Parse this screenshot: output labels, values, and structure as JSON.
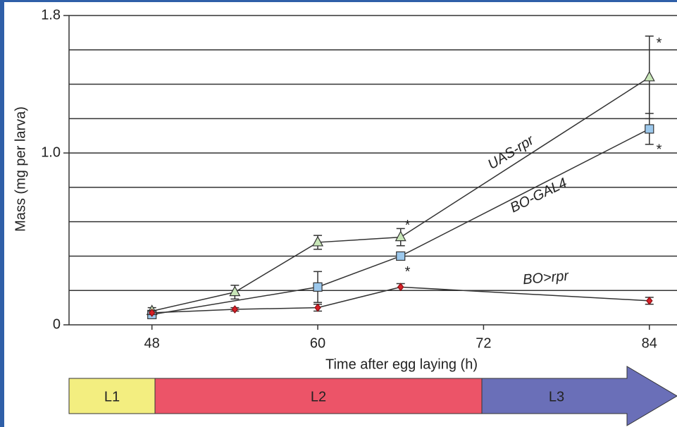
{
  "chart_data": {
    "type": "line",
    "y_label": "Mass (mg per larva)",
    "x_label": "Time after egg laying (h)",
    "xlim": [
      42,
      86
    ],
    "xticks": [
      48,
      60,
      72,
      84
    ],
    "ylim": [
      0,
      1.8
    ],
    "yticks": [
      0,
      {
        "value": 1,
        "label": "1.0"
      },
      1.8
    ],
    "ygrid": [
      0.2,
      0.4,
      0.6,
      0.8,
      1,
      1.2,
      1.4,
      1.6,
      1.8
    ],
    "series": [
      {
        "name": "UAS-rpr",
        "color": "#c8e6b8",
        "marker": "triangle",
        "x": [
          48,
          54,
          60,
          66,
          84
        ],
        "values": [
          0.08,
          0.19,
          0.48,
          0.51,
          1.44
        ],
        "errors": [
          0.02,
          0.04,
          0.04,
          0.05,
          0.24
        ]
      },
      {
        "name": "BO-GAL4",
        "color": "#9cc8ec",
        "marker": "square",
        "x": [
          48,
          60,
          66,
          84
        ],
        "values": [
          0.06,
          0.22,
          0.4,
          1.14
        ],
        "errors": [
          0.01,
          0.09,
          0.01,
          0.09
        ]
      },
      {
        "name": "BO>rpr",
        "color": "#d81f26",
        "marker": "diamond",
        "x": [
          48,
          54,
          60,
          66,
          84
        ],
        "values": [
          0.07,
          0.09,
          0.1,
          0.22,
          0.14
        ],
        "errors": [
          0.01,
          0.01,
          0.02,
          0.02,
          0.02
        ]
      }
    ],
    "annotations": [
      {
        "text": "*",
        "x": 66.5,
        "y": 0.6
      },
      {
        "text": "*",
        "x": 66.5,
        "y": 0.33
      },
      {
        "text": "*",
        "x": 84.7,
        "y": 1.66
      },
      {
        "text": "*",
        "x": 84.7,
        "y": 1.04
      }
    ],
    "stages": [
      "L1",
      "L2",
      "L3"
    ]
  }
}
